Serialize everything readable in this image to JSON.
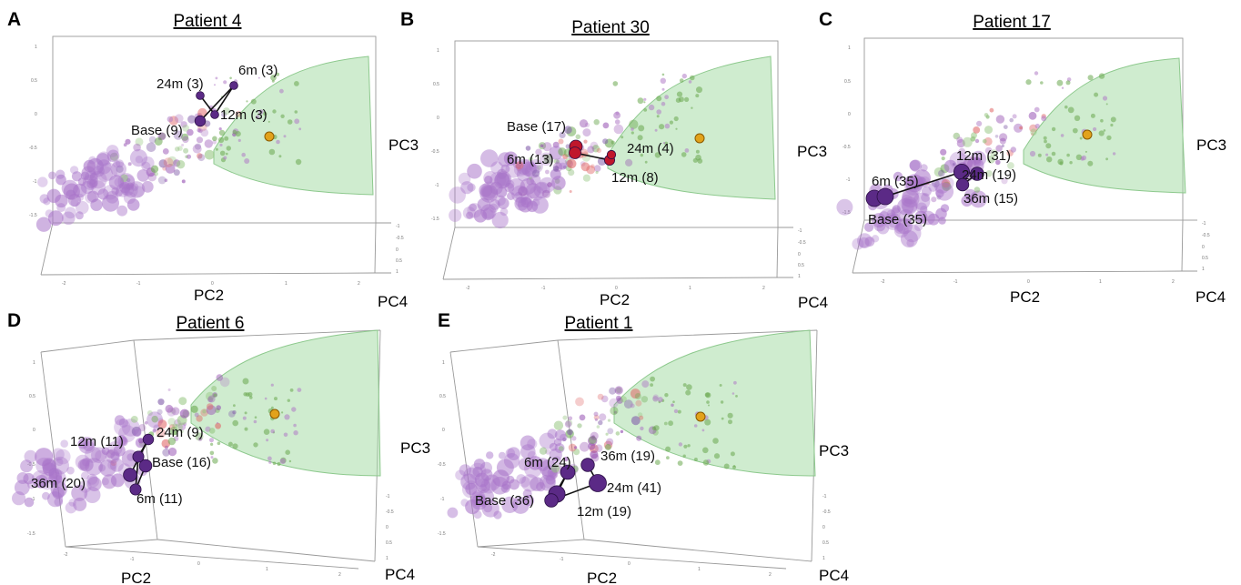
{
  "chart_data": [
    {
      "type": "scatter",
      "letter": "A",
      "title": "Patient 4",
      "xlabel": "PC2",
      "ylabel": "PC3",
      "zlabel": "PC4",
      "x_ticks": [
        "-2",
        "-1",
        "0",
        "1",
        "2"
      ],
      "y_ticks": [
        "1",
        "0.5",
        "0",
        "-0.5",
        "-1",
        "-1.5"
      ],
      "z_ticks": [
        "-1",
        "-0.5",
        "0",
        "0.5",
        "1"
      ],
      "trajectory": [
        {
          "label": "Base (9)",
          "pc2": -0.15,
          "pc3": 0.05,
          "size": 9
        },
        {
          "label": "6m (3)",
          "pc2": 0.3,
          "pc3": 0.8,
          "size": 3
        },
        {
          "label": "12m (3)",
          "pc2": 0.05,
          "pc3": 0.05,
          "size": 3
        },
        {
          "label": "24m (3)",
          "pc2": -0.15,
          "pc3": 0.38,
          "size": 3
        }
      ],
      "colors": {
        "trajectory": "#5b2a86",
        "reference": "#e2a21b"
      }
    },
    {
      "type": "scatter",
      "letter": "B",
      "title": "Patient 30",
      "xlabel": "PC2",
      "ylabel": "PC3",
      "zlabel": "PC4",
      "x_ticks": [
        "-2",
        "-1",
        "0",
        "1",
        "2"
      ],
      "y_ticks": [
        "1",
        "0.5",
        "0",
        "-0.5",
        "-1",
        "-1.5"
      ],
      "z_ticks": [
        "-1",
        "-0.5",
        "0",
        "0.5",
        "1"
      ],
      "trajectory": [
        {
          "label": "Base (17)",
          "pc2": -0.7,
          "pc3": -0.35,
          "size": 17
        },
        {
          "label": "6m (13)",
          "pc2": -0.7,
          "pc3": -0.45,
          "size": 13
        },
        {
          "label": "12m (8)",
          "pc2": -0.05,
          "pc3": -0.75,
          "size": 8
        },
        {
          "label": "24m (4)",
          "pc2": -0.05,
          "pc3": -0.7,
          "size": 4
        }
      ],
      "colors": {
        "trajectory": "#c0172c",
        "reference": "#e2a21b"
      }
    },
    {
      "type": "scatter",
      "letter": "C",
      "title": "Patient 17",
      "xlabel": "PC2",
      "ylabel": "PC3",
      "zlabel": "PC4",
      "x_ticks": [
        "-2",
        "-1",
        "0",
        "1",
        "2"
      ],
      "y_ticks": [
        "1",
        "0.5",
        "0",
        "-0.5",
        "-1",
        "-1.5"
      ],
      "z_ticks": [
        "-1",
        "-0.5",
        "0",
        "0.5",
        "1"
      ],
      "trajectory": [
        {
          "label": "Base (35)",
          "pc2": -2.6,
          "pc3": -1.3,
          "size": 35
        },
        {
          "label": "6m (35)",
          "pc2": -2.4,
          "pc3": -1.25,
          "size": 35
        },
        {
          "label": "12m (31)",
          "pc2": -0.6,
          "pc3": -0.85,
          "size": 31
        },
        {
          "label": "24m (19)",
          "pc2": -0.4,
          "pc3": -0.95,
          "size": 19
        },
        {
          "label": "36m (15)",
          "pc2": -0.5,
          "pc3": -1.1,
          "size": 15
        }
      ],
      "colors": {
        "trajectory": "#5b2a86",
        "reference": "#e2a21b"
      }
    },
    {
      "type": "scatter",
      "letter": "D",
      "title": "Patient 6",
      "xlabel": "PC2",
      "ylabel": "PC3",
      "zlabel": "PC4",
      "x_ticks": [
        "-2",
        "-1",
        "0",
        "1",
        "2"
      ],
      "y_ticks": [
        "1",
        "0.5",
        "0",
        "-0.5",
        "-1",
        "-1.5"
      ],
      "z_ticks": [
        "-1",
        "-0.5",
        "0",
        "0.5",
        "1"
      ],
      "trajectory": [
        {
          "label": "Base (16)",
          "pc2": -1.9,
          "pc3": -0.5,
          "size": 16
        },
        {
          "label": "6m (11)",
          "pc2": -2.1,
          "pc3": -0.85,
          "size": 11
        },
        {
          "label": "12m (11)",
          "pc2": -2.0,
          "pc3": -0.2,
          "size": 11
        },
        {
          "label": "24m (9)",
          "pc2": -1.8,
          "pc3": -0.05,
          "size": 9
        },
        {
          "label": "36m (20)",
          "pc2": -2.2,
          "pc3": -0.65,
          "size": 20
        }
      ],
      "colors": {
        "trajectory": "#5b2a86",
        "reference": "#e2a21b"
      }
    },
    {
      "type": "scatter",
      "letter": "E",
      "title": "Patient 1",
      "xlabel": "PC2",
      "ylabel": "PC3",
      "zlabel": "PC4",
      "x_ticks": [
        "-2",
        "-1",
        "0",
        "1",
        "2"
      ],
      "y_ticks": [
        "1",
        "0.5",
        "0",
        "-0.5",
        "-1",
        "-1.5"
      ],
      "z_ticks": [
        "-1",
        "-0.5",
        "0",
        "0.5",
        "1"
      ],
      "trajectory": [
        {
          "label": "Base (36)",
          "pc2": -1.3,
          "pc3": -0.95,
          "size": 36
        },
        {
          "label": "6m (24)",
          "pc2": -1.0,
          "pc3": -0.6,
          "size": 24
        },
        {
          "label": "12m (19)",
          "pc2": -1.2,
          "pc3": -1.1,
          "size": 19
        },
        {
          "label": "24m (41)",
          "pc2": -0.95,
          "pc3": -0.85,
          "size": 41
        },
        {
          "label": "36m (19)",
          "pc2": -0.95,
          "pc3": -0.5,
          "size": 19
        }
      ],
      "colors": {
        "trajectory": "#5b2a86",
        "reference": "#e2a21b"
      }
    }
  ]
}
